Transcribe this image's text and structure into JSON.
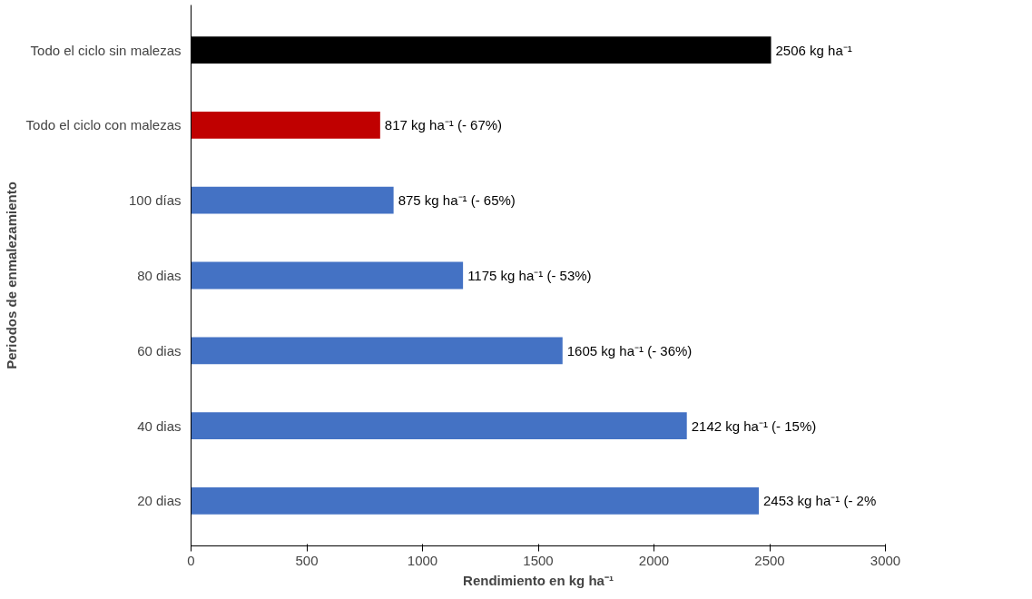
{
  "chart_data": {
    "type": "bar",
    "orientation": "horizontal",
    "xlabel": "Rendimiento en kg ha⁻¹",
    "ylabel": "Periodos de enmalezamiento",
    "categories": [
      "Todo el ciclo sin malezas",
      "Todo el ciclo con malezas",
      "100 días",
      "80 dias",
      "60 dias",
      "40 dias",
      "20 dias"
    ],
    "values": [
      2506,
      817,
      875,
      1175,
      1605,
      2142,
      2453
    ],
    "colors": [
      "#000000",
      "#c00000",
      "#4472c4",
      "#4472c4",
      "#4472c4",
      "#4472c4",
      "#4472c4"
    ],
    "value_labels": [
      "2506 kg ha⁻¹",
      "817 kg ha⁻¹ (- 67%)",
      "875 kg ha⁻¹ (- 65%)",
      "1175 kg ha⁻¹ (- 53%)",
      "1605 kg ha⁻¹ (- 36%)",
      "2142 kg ha⁻¹ (- 15%)",
      "2453 kg ha⁻¹   (- 2%"
    ],
    "xlim": [
      0,
      3000
    ],
    "xticks": [
      0,
      500,
      1000,
      1500,
      2000,
      2500,
      3000
    ],
    "grid": false
  }
}
